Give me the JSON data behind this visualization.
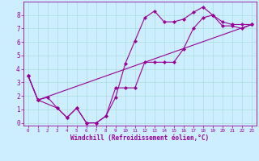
{
  "xlabel": "Windchill (Refroidissement éolien,°C)",
  "xlim": [
    -0.5,
    23.5
  ],
  "ylim": [
    -0.2,
    9.0
  ],
  "xticks": [
    0,
    1,
    2,
    3,
    4,
    5,
    6,
    7,
    8,
    9,
    10,
    11,
    12,
    13,
    14,
    15,
    16,
    17,
    18,
    19,
    20,
    21,
    22,
    23
  ],
  "yticks": [
    0,
    1,
    2,
    3,
    4,
    5,
    6,
    7,
    8
  ],
  "background_color": "#cceeff",
  "line_color": "#990099",
  "curve1_x": [
    0,
    1,
    3,
    4,
    5,
    6,
    7,
    8,
    9,
    10,
    11,
    12,
    13,
    14,
    15,
    16,
    17,
    18,
    19,
    20,
    21,
    22,
    23
  ],
  "curve1_y": [
    3.5,
    1.7,
    1.1,
    0.4,
    1.1,
    0.0,
    0.0,
    0.5,
    1.9,
    4.4,
    6.1,
    7.8,
    8.3,
    7.5,
    7.5,
    7.7,
    8.2,
    8.6,
    8.0,
    7.2,
    7.2,
    7.0,
    7.3
  ],
  "curve2_x": [
    0,
    1,
    2,
    3,
    4,
    5,
    6,
    7,
    8,
    9,
    10,
    11,
    12,
    13,
    14,
    15,
    16,
    17,
    18,
    19,
    20,
    21,
    22,
    23
  ],
  "curve2_y": [
    3.5,
    1.7,
    1.9,
    1.1,
    0.4,
    1.1,
    0.0,
    0.0,
    0.5,
    2.6,
    2.6,
    2.6,
    4.5,
    4.5,
    4.5,
    4.5,
    5.5,
    7.0,
    7.8,
    8.0,
    7.5,
    7.3,
    7.3,
    7.3
  ],
  "curve3_x": [
    0,
    1,
    23
  ],
  "curve3_y": [
    3.5,
    1.7,
    7.3
  ],
  "grid_color": "#aadddd",
  "marker": "D",
  "markersize": 2.2,
  "linewidth": 0.8
}
